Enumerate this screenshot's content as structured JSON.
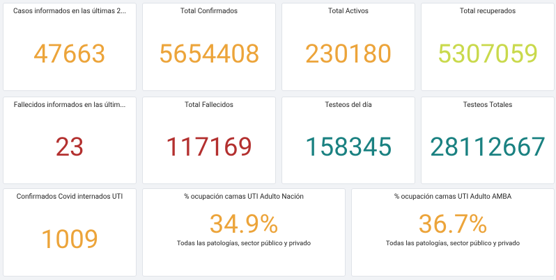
{
  "cards": [
    {
      "title": "Casos informados en las últimas 2...",
      "value": "47663",
      "color": "#eca43a"
    },
    {
      "title": "Total Confirmados",
      "value": "5654408",
      "color": "#eca43a"
    },
    {
      "title": "Total Activos",
      "value": "230180",
      "color": "#eca43a"
    },
    {
      "title": "Total recuperados",
      "value": "5307059",
      "color": "#c9d94c"
    },
    {
      "title": "Fallecidos informados en las últim...",
      "value": "23",
      "color": "#b3302f"
    },
    {
      "title": "Total Fallecidos",
      "value": "117169",
      "color": "#b3302f"
    },
    {
      "title": "Testeos del día",
      "value": "158345",
      "color": "#1a8181"
    },
    {
      "title": "Testeos Totales",
      "value": "28112667",
      "color": "#1a8181"
    },
    {
      "title": "Confirmados Covid internados UTI",
      "value": "1009",
      "color": "#eca43a"
    },
    {
      "title": "% ocupación camas UTI Adulto Nación",
      "value": "34.9%",
      "subtitle": "Todas las patologías, sector público y privado",
      "color": "#eca43a"
    },
    {
      "title": "% ocupación camas UTI Adulto AMBA",
      "value": "36.7%",
      "subtitle": "Todas las patologías, sector público y privado",
      "color": "#eca43a"
    }
  ]
}
